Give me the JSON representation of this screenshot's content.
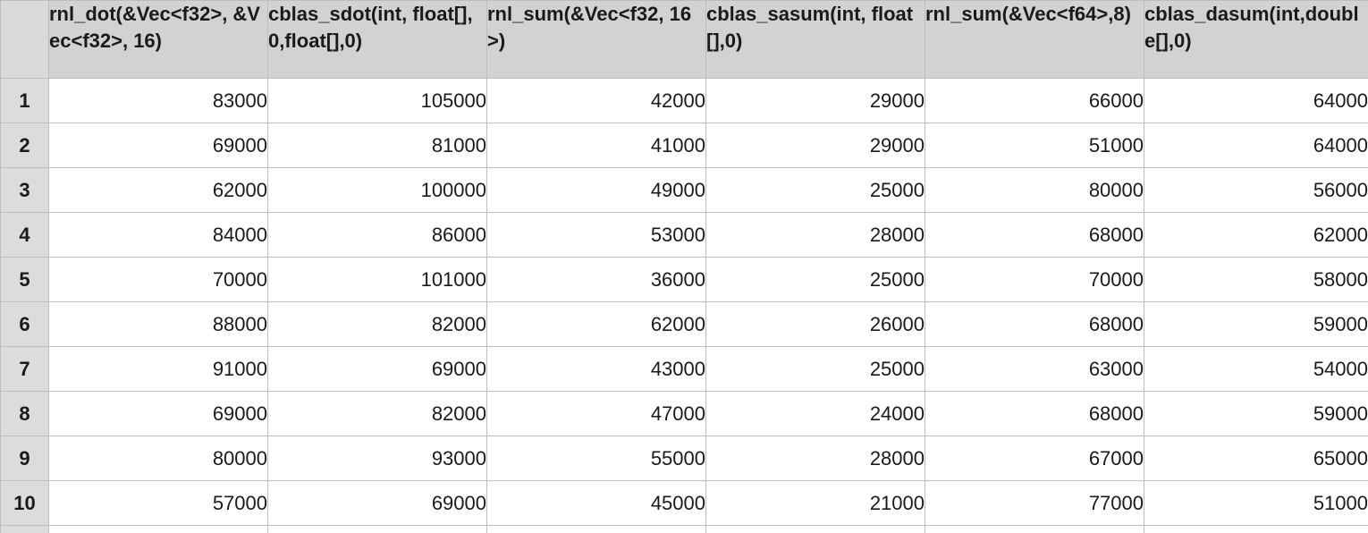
{
  "columns": [
    "rnl_dot(&Vec<f32>, &Vec<f32>, 16)",
    "cblas_sdot(int, float[],0,float[],0)",
    "rnl_sum(&Vec<f32, 16>)",
    "cblas_sasum(int, float[],0)",
    "rnl_sum(&Vec<f64>,8)",
    "cblas_dasum(int,double[],0)"
  ],
  "rows": [
    {
      "num": "1",
      "cells": [
        "83000",
        "105000",
        "42000",
        "29000",
        "66000",
        "64000"
      ]
    },
    {
      "num": "2",
      "cells": [
        "69000",
        "81000",
        "41000",
        "29000",
        "51000",
        "64000"
      ]
    },
    {
      "num": "3",
      "cells": [
        "62000",
        "100000",
        "49000",
        "25000",
        "80000",
        "56000"
      ]
    },
    {
      "num": "4",
      "cells": [
        "84000",
        "86000",
        "53000",
        "28000",
        "68000",
        "62000"
      ]
    },
    {
      "num": "5",
      "cells": [
        "70000",
        "101000",
        "36000",
        "25000",
        "70000",
        "58000"
      ]
    },
    {
      "num": "6",
      "cells": [
        "88000",
        "82000",
        "62000",
        "26000",
        "68000",
        "59000"
      ]
    },
    {
      "num": "7",
      "cells": [
        "91000",
        "69000",
        "43000",
        "25000",
        "63000",
        "54000"
      ]
    },
    {
      "num": "8",
      "cells": [
        "69000",
        "82000",
        "47000",
        "24000",
        "68000",
        "59000"
      ]
    },
    {
      "num": "9",
      "cells": [
        "80000",
        "93000",
        "55000",
        "28000",
        "67000",
        "65000"
      ]
    },
    {
      "num": "10",
      "cells": [
        "57000",
        "69000",
        "45000",
        "21000",
        "77000",
        "51000"
      ]
    }
  ]
}
